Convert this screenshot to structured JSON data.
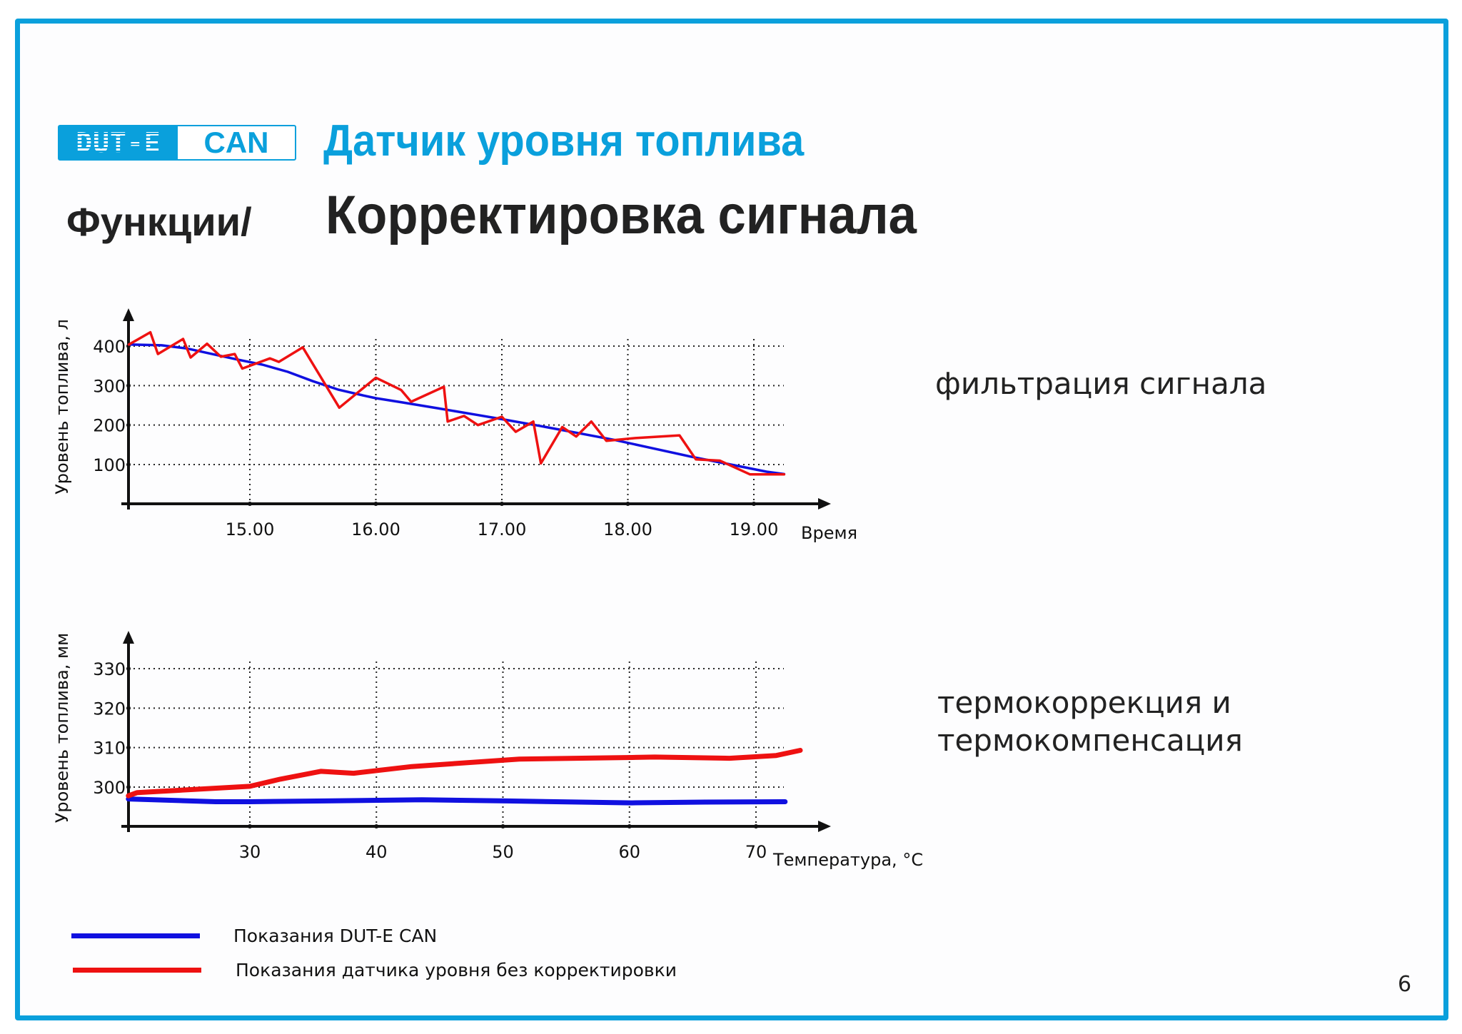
{
  "slide": {
    "frame_color": "#0aa0dc",
    "logo": {
      "left_text": "DUT-E",
      "right_text": "CAN"
    },
    "product_title": "Датчик уровня топлива",
    "section_prefix": "Функции/",
    "section_title": "Корректировка сигнала",
    "side_labels": {
      "filtering": "фильтрация сигнала",
      "thermo_line1": "термокоррекция и",
      "thermo_line2": "термокомпенсация"
    },
    "legend": [
      {
        "label": "Показания DUT-E CAN",
        "color": "#1010e0"
      },
      {
        "label": "Показания датчика уровня без корректировки",
        "color": "#ee1111"
      }
    ],
    "page_number": "6"
  },
  "chart_data": [
    {
      "type": "line",
      "title": "фильтрация сигнала",
      "xlabel": "Время",
      "ylabel": "Уровень топлива, л",
      "xticks": [
        15,
        16,
        17,
        18,
        19
      ],
      "xtick_labels": [
        "15.00",
        "16.00",
        "17.00",
        "18.00",
        "19.00"
      ],
      "yticks": [
        100,
        200,
        300,
        400
      ],
      "xlim": [
        14.04,
        19.6
      ],
      "ylim": [
        0,
        490
      ],
      "grid": true,
      "series": [
        {
          "name": "Показания DUT-E CAN",
          "color": "#1010e0",
          "x": [
            14.04,
            14.3,
            14.5,
            14.7,
            14.9,
            15.1,
            15.3,
            15.5,
            15.7,
            15.9,
            16.0,
            16.2,
            16.5,
            16.8,
            17.0,
            17.3,
            17.6,
            17.9,
            18.2,
            18.5,
            18.8,
            19.1,
            19.24
          ],
          "values": [
            404,
            402,
            394,
            380,
            366,
            353,
            335,
            311,
            290,
            275,
            268,
            258,
            242,
            226,
            215,
            198,
            180,
            162,
            141,
            120,
            101,
            82,
            76
          ]
        },
        {
          "name": "Показания датчика уровня без корректировки",
          "color": "#ee1111",
          "x": [
            14.04,
            14.21,
            14.27,
            14.47,
            14.53,
            14.66,
            14.77,
            14.88,
            14.94,
            15.16,
            15.23,
            15.42,
            15.71,
            16.0,
            16.2,
            16.28,
            16.54,
            16.57,
            16.7,
            16.81,
            17.0,
            17.11,
            17.25,
            17.31,
            17.48,
            17.59,
            17.71,
            17.83,
            18.06,
            18.41,
            18.54,
            18.73,
            18.97,
            19.24
          ],
          "values": [
            404,
            435,
            380,
            418,
            371,
            406,
            373,
            380,
            343,
            369,
            360,
            397,
            244,
            320,
            289,
            259,
            297,
            209,
            223,
            200,
            221,
            183,
            209,
            103,
            195,
            171,
            209,
            160,
            167,
            174,
            113,
            110,
            75,
            75
          ]
        }
      ]
    },
    {
      "type": "line",
      "title": "термокоррекция и термокомпенсация",
      "xlabel": "Температура, °C",
      "ylabel": "Уровень топлива, мм",
      "xticks": [
        30,
        40,
        50,
        60,
        70
      ],
      "xtick_labels": [
        "30",
        "40",
        "50",
        "60",
        "70"
      ],
      "yticks": [
        300,
        310,
        320,
        330
      ],
      "ytick_labels": [
        "300",
        "310",
        "320",
        "330"
      ],
      "xlim": [
        20.4,
        78.5
      ],
      "ylim": [
        290,
        335
      ],
      "grid": true,
      "series": [
        {
          "name": "Показания DUT-E CAN",
          "color": "#1010e0",
          "x": [
            20.4,
            27.3,
            30,
            36,
            43.6,
            50.3,
            60.2,
            66,
            72.3
          ],
          "values": [
            297,
            296.3,
            296.3,
            296.5,
            296.8,
            296.5,
            296,
            296.2,
            296.3
          ]
        },
        {
          "name": "Показания датчика уровня без корректировки",
          "color": "#ee1111",
          "x": [
            20.4,
            21.1,
            30,
            32.4,
            35.6,
            38.2,
            42.8,
            51.3,
            60.2,
            62,
            67.9,
            71.6,
            73.5
          ],
          "values": [
            297.8,
            298.6,
            300.2,
            302,
            304,
            303.5,
            305.2,
            307.1,
            307.5,
            307.6,
            307.3,
            308,
            309.3
          ]
        }
      ]
    }
  ]
}
